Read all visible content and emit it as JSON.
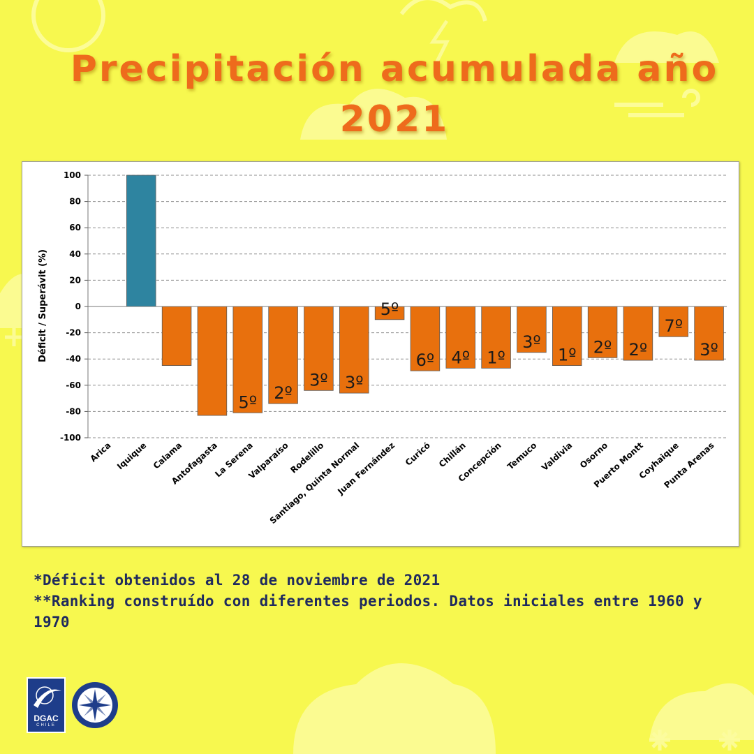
{
  "title": {
    "line1": "Precipitación acumulada año",
    "line2": "2021"
  },
  "notes": [
    "*Déficit obtenidos al 28 de noviembre de 2021",
    "**Ranking construído con diferentes periodos. Datos iniciales entre 1960 y 1970"
  ],
  "logos": {
    "dgac": "DGAC",
    "dgac_sub": "CHILE"
  },
  "colors": {
    "background": "#f7f84f",
    "title": "#ee6b1c",
    "deficit_bar": "#e8700d",
    "surplus_bar": "#2e84a0",
    "notes": "#1f2a5e"
  },
  "chart_data": {
    "type": "bar",
    "title": "",
    "xlabel": "",
    "ylabel": "Déficit / Superávit (%)",
    "ylim": [
      -100,
      100
    ],
    "yticks": [
      100,
      80,
      60,
      40,
      20,
      0,
      -20,
      -40,
      -60,
      -80,
      -100
    ],
    "grid": true,
    "categories": [
      "Arica",
      "Iquique",
      "Calama",
      "Antofagasta",
      "La Serena",
      "Valparaíso",
      "Rodelillo",
      "Santiago, Quinta Normal",
      "Juan Fernández",
      "Curicó",
      "Chillán",
      "Concepción",
      "Temuco",
      "Valdivia",
      "Osorno",
      "Puerto Montt",
      "Coyhaique",
      "Punta Arenas"
    ],
    "values": [
      0,
      100,
      -45,
      -83,
      -81,
      -74,
      -64,
      -66,
      -10,
      -49,
      -47,
      -47,
      -35,
      -45,
      -39,
      -41,
      -23,
      -41
    ],
    "rank_labels": [
      "",
      "",
      "",
      "",
      "5º",
      "2º",
      "3º",
      "3º",
      "5º",
      "6º",
      "4º",
      "1º",
      "3º",
      "1º",
      "2º",
      "2º",
      "7º",
      "3º"
    ]
  }
}
